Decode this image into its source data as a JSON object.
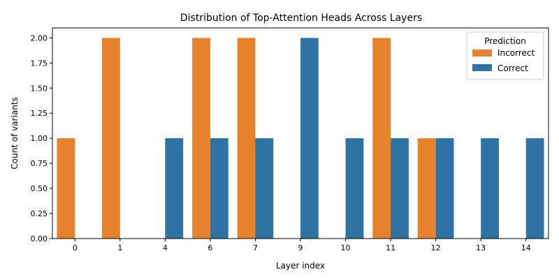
{
  "chart_data": {
    "type": "bar",
    "title": "Distribution of Top-Attention Heads Across Layers",
    "xlabel": "Layer index",
    "ylabel": "Count of variants",
    "categories": [
      "0",
      "1",
      "4",
      "6",
      "7",
      "9",
      "10",
      "11",
      "12",
      "13",
      "14"
    ],
    "series": [
      {
        "name": "Incorrect",
        "color": "#e6822e",
        "values": [
          1,
          2,
          0,
          2,
          2,
          0,
          0,
          2,
          1,
          0,
          0
        ]
      },
      {
        "name": "Correct",
        "color": "#2f72a4",
        "values": [
          0,
          0,
          1,
          1,
          1,
          2,
          1,
          1,
          1,
          1,
          1
        ]
      }
    ],
    "ylim": [
      0,
      2.1
    ],
    "yticks": [
      "0.00",
      "0.25",
      "0.50",
      "0.75",
      "1.00",
      "1.25",
      "1.50",
      "1.75",
      "2.00"
    ],
    "legend": {
      "title": "Prediction",
      "placement": "top-right"
    },
    "grid": false
  }
}
